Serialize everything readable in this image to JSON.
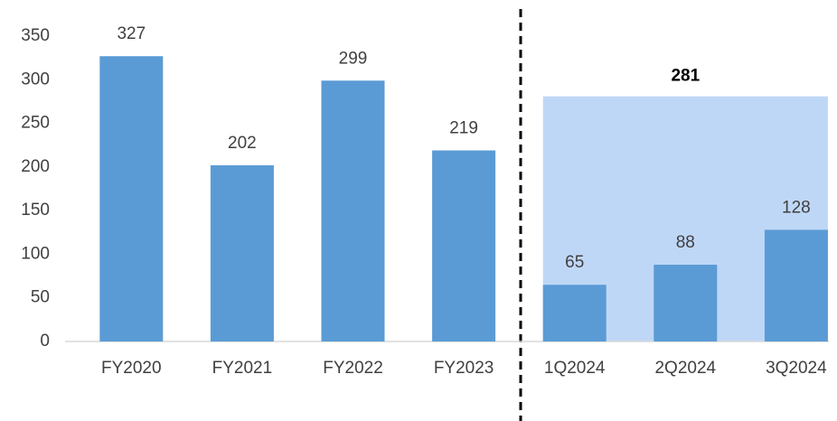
{
  "chart_data": {
    "type": "bar",
    "categories": [
      "FY2020",
      "FY2021",
      "FY2022",
      "FY2023",
      "1Q2024",
      "2Q2024",
      "3Q2024"
    ],
    "values": [
      327,
      202,
      299,
      219,
      65,
      88,
      128
    ],
    "color": "#5b9bd5",
    "ylim": [
      0,
      350
    ],
    "yticks": [
      0,
      50,
      100,
      150,
      200,
      250,
      300,
      350
    ],
    "grid": false,
    "annotation": {
      "value": 281,
      "color": "#bfd7f7"
    }
  }
}
